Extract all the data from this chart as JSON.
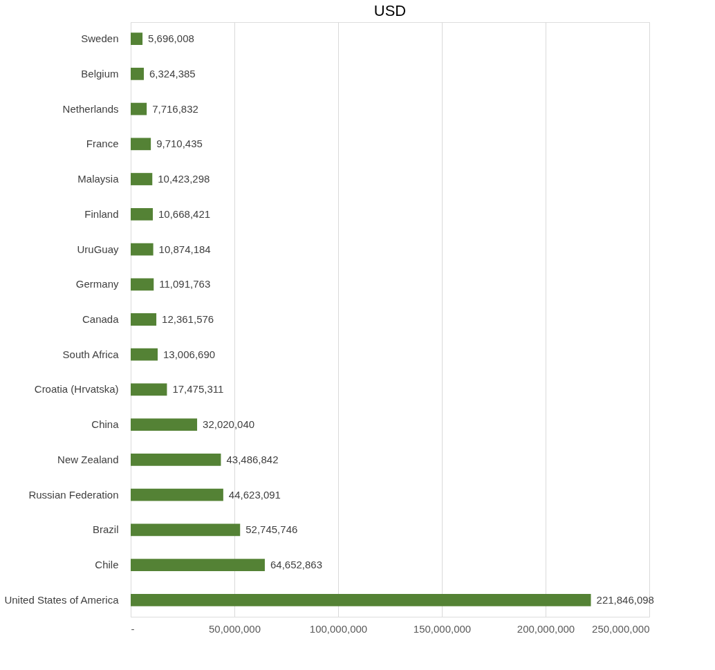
{
  "chart_data": {
    "type": "bar",
    "orientation": "horizontal",
    "title": "USD",
    "categories": [
      "Sweden",
      "Belgium",
      "Netherlands",
      "France",
      "Malaysia",
      "Finland",
      "UruGuay",
      "Germany",
      "Canada",
      "South Africa",
      "Croatia (Hrvatska)",
      "China",
      "New Zealand",
      "Russian Federation",
      "Brazil",
      "Chile",
      "United States of America"
    ],
    "values": [
      5696008,
      6324385,
      7716832,
      9710435,
      10423298,
      10668421,
      10874184,
      11091763,
      12361576,
      13006690,
      17475311,
      32020040,
      43486842,
      44623091,
      52745746,
      64652863,
      221846098
    ],
    "value_labels": [
      "5,696,008",
      "6,324,385",
      "7,716,832",
      "9,710,435",
      "10,423,298",
      "10,668,421",
      "10,874,184",
      "11,091,763",
      "12,361,576",
      "13,006,690",
      "17,475,311",
      "32,020,040",
      "43,486,842",
      "44,623,091",
      "52,745,746",
      "64,652,863",
      "221,846,098"
    ],
    "color": "#548235",
    "xlim": [
      0,
      250000000
    ],
    "xticks": [
      {
        "value": 0,
        "label": "-"
      },
      {
        "value": 50000000,
        "label": "50,000,000"
      },
      {
        "value": 100000000,
        "label": "100,000,000"
      },
      {
        "value": 150000000,
        "label": "150,000,000"
      },
      {
        "value": 200000000,
        "label": "200,000,000"
      },
      {
        "value": 250000000,
        "label": "250,000,000"
      }
    ],
    "grid": "x"
  }
}
